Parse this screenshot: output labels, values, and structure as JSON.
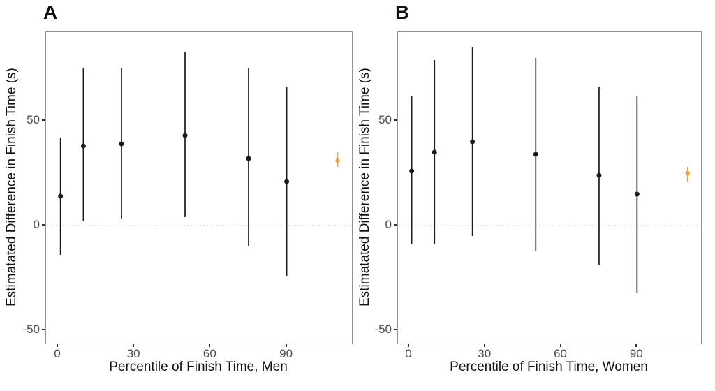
{
  "figure": {
    "background": "#ffffff",
    "accent_orange": "#F2A231",
    "point_black": "#1a1a1a",
    "frame_border": "#919191",
    "zero_line_color": "#d4d4d4",
    "tick_text_color": "#4d4d4d"
  },
  "chart_data": [
    {
      "type": "scatter",
      "panel_label": "A",
      "xlabel": "Percentile of Finish Time, Men",
      "ylabel": "Estimatated Difference in Finish Time (s)",
      "x_ticks": [
        0,
        30,
        60,
        90
      ],
      "y_ticks": [
        50,
        0,
        -50
      ],
      "xlim": [
        -5,
        116
      ],
      "ylim": [
        -56,
        92
      ],
      "zero_line": 0,
      "grid": "off",
      "legend": "none",
      "points": [
        {
          "x": 1,
          "est": 14,
          "lo": -14,
          "hi": 42,
          "color": "black",
          "marker": "circle"
        },
        {
          "x": 10,
          "est": 38,
          "lo": 2,
          "hi": 75,
          "color": "black",
          "marker": "circle"
        },
        {
          "x": 25,
          "est": 39,
          "lo": 3,
          "hi": 75,
          "color": "black",
          "marker": "circle"
        },
        {
          "x": 50,
          "est": 43,
          "lo": 4,
          "hi": 83,
          "color": "black",
          "marker": "circle"
        },
        {
          "x": 75,
          "est": 32,
          "lo": -10,
          "hi": 75,
          "color": "black",
          "marker": "circle"
        },
        {
          "x": 90,
          "est": 21,
          "lo": -24,
          "hi": 66,
          "color": "black",
          "marker": "circle"
        },
        {
          "x": 110,
          "est": 31,
          "lo": 28,
          "hi": 35,
          "color": "orange",
          "marker": "diamond"
        }
      ]
    },
    {
      "type": "scatter",
      "panel_label": "B",
      "xlabel": "Percentile of Finish Time, Women",
      "ylabel": "Estimatated Difference in Finish Time (s)",
      "x_ticks": [
        0,
        30,
        60,
        90
      ],
      "y_ticks": [
        50,
        0,
        -50
      ],
      "xlim": [
        -5,
        116
      ],
      "ylim": [
        -56,
        92
      ],
      "zero_line": 0,
      "grid": "off",
      "legend": "none",
      "points": [
        {
          "x": 1,
          "est": 26,
          "lo": -9,
          "hi": 62,
          "color": "black",
          "marker": "circle"
        },
        {
          "x": 10,
          "est": 35,
          "lo": -9,
          "hi": 79,
          "color": "black",
          "marker": "circle"
        },
        {
          "x": 25,
          "est": 40,
          "lo": -5,
          "hi": 85,
          "color": "black",
          "marker": "circle"
        },
        {
          "x": 50,
          "est": 34,
          "lo": -12,
          "hi": 80,
          "color": "black",
          "marker": "circle"
        },
        {
          "x": 75,
          "est": 24,
          "lo": -19,
          "hi": 66,
          "color": "black",
          "marker": "circle"
        },
        {
          "x": 90,
          "est": 15,
          "lo": -32,
          "hi": 62,
          "color": "black",
          "marker": "circle"
        },
        {
          "x": 110,
          "est": 25,
          "lo": 21,
          "hi": 28,
          "color": "orange",
          "marker": "diamond"
        }
      ]
    }
  ]
}
